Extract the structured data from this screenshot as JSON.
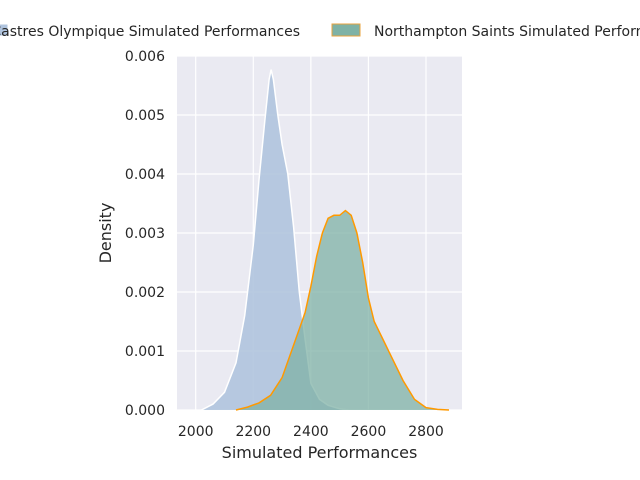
{
  "chart_data": {
    "type": "area",
    "xlabel": "Simulated Performances",
    "ylabel": "Density",
    "xlim": [
      1935,
      2925
    ],
    "ylim": [
      0,
      0.006
    ],
    "grid": true,
    "legend_position": "top, outside plot",
    "x_ticks": [
      2000,
      2200,
      2400,
      2600,
      2800
    ],
    "x_tick_labels": [
      "2000",
      "2200",
      "2400",
      "2600",
      "2800"
    ],
    "y_ticks": [
      0,
      0.001,
      0.002,
      0.003,
      0.004,
      0.005,
      0.006
    ],
    "y_tick_labels": [
      "0.000",
      "0.001",
      "0.002",
      "0.003",
      "0.004",
      "0.005",
      "0.006"
    ],
    "series": [
      {
        "name": "Castres Olympique Simulated Performances",
        "fill_color": "#b0c4de",
        "edge_color": "#ffffff",
        "x": [
          2020,
          2060,
          2100,
          2140,
          2170,
          2200,
          2220,
          2240,
          2255,
          2262,
          2270,
          2285,
          2300,
          2320,
          2340,
          2360,
          2380,
          2400,
          2430,
          2460,
          2500,
          2530
        ],
        "y": [
          0.0,
          0.0001,
          0.0003,
          0.0008,
          0.0016,
          0.0028,
          0.0039,
          0.0049,
          0.0056,
          0.00577,
          0.0056,
          0.005,
          0.0045,
          0.004,
          0.0031,
          0.002,
          0.0012,
          0.00045,
          0.00018,
          8e-05,
          2e-05,
          0.0
        ]
      },
      {
        "name": "Northampton Saints Simulated Performances",
        "fill_color": "#7fb2a5",
        "edge_color": "#ff9900",
        "x": [
          2140,
          2180,
          2220,
          2260,
          2300,
          2340,
          2380,
          2400,
          2420,
          2440,
          2460,
          2480,
          2500,
          2520,
          2540,
          2560,
          2580,
          2600,
          2620,
          2640,
          2680,
          2720,
          2760,
          2800,
          2840,
          2880
        ],
        "y": [
          0.0,
          5e-05,
          0.00012,
          0.00025,
          0.00055,
          0.0011,
          0.00165,
          0.0021,
          0.0026,
          0.003,
          0.00325,
          0.0033,
          0.0033,
          0.00338,
          0.0033,
          0.003,
          0.0025,
          0.0019,
          0.0015,
          0.0013,
          0.0009,
          0.0005,
          0.00018,
          4e-05,
          1e-05,
          0.0
        ]
      }
    ]
  }
}
